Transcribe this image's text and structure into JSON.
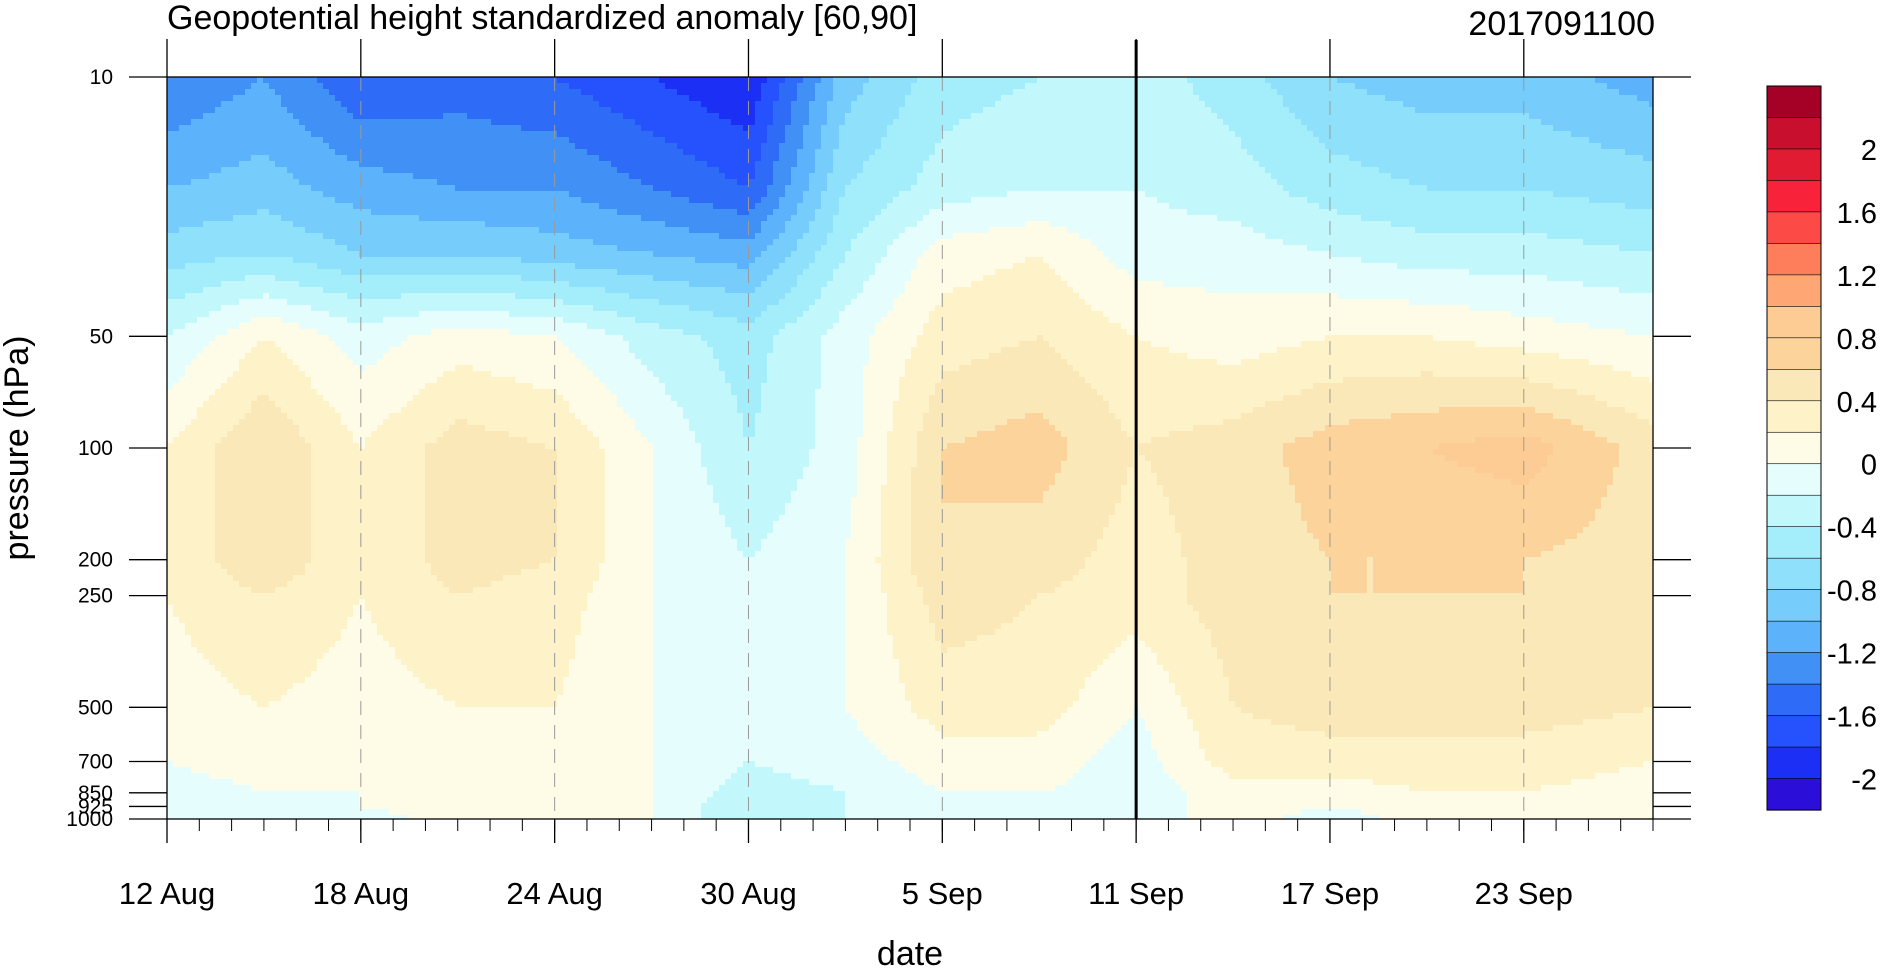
{
  "chart_data": {
    "type": "heatmap",
    "title": "Geopotential height standardized anomaly [60,90]",
    "date_stamp": "2017091100",
    "xlabel": "date",
    "ylabel": "pressure (hPa)",
    "y_scale": "log",
    "y_inverted": true,
    "xlim": [
      "2017-08-12",
      "2017-09-27"
    ],
    "ylim": [
      1000,
      10
    ],
    "x_ticks": [
      {
        "date": "2017-08-12",
        "label": "12 Aug"
      },
      {
        "date": "2017-08-18",
        "label": "18 Aug"
      },
      {
        "date": "2017-08-24",
        "label": "24 Aug"
      },
      {
        "date": "2017-08-30",
        "label": "30 Aug"
      },
      {
        "date": "2017-09-05",
        "label": "5 Sep"
      },
      {
        "date": "2017-09-11",
        "label": "11 Sep"
      },
      {
        "date": "2017-09-17",
        "label": "17 Sep"
      },
      {
        "date": "2017-09-23",
        "label": "23 Sep"
      }
    ],
    "y_ticks": [
      10,
      50,
      100,
      200,
      250,
      500,
      700,
      850,
      925,
      1000
    ],
    "current_date_line": "2017-09-11",
    "grid": "dashed vertical lines at x ticks",
    "x": [
      "2017-08-12",
      "2017-08-15",
      "2017-08-18",
      "2017-08-21",
      "2017-08-24",
      "2017-08-27",
      "2017-08-30",
      "2017-09-02",
      "2017-09-05",
      "2017-09-08",
      "2017-09-11",
      "2017-09-14",
      "2017-09-17",
      "2017-09-20",
      "2017-09-23",
      "2017-09-27"
    ],
    "y": [
      10,
      20,
      30,
      50,
      100,
      200,
      250,
      500,
      700,
      850,
      925,
      1000
    ],
    "z": [
      [
        -1.4,
        -1.2,
        -1.6,
        -1.5,
        -1.6,
        -1.8,
        -2.0,
        -0.9,
        -0.5,
        -0.4,
        -0.3,
        -0.5,
        -0.8,
        -0.9,
        -0.9,
        -1.1
      ],
      [
        -1.0,
        -0.9,
        -1.1,
        -1.2,
        -1.2,
        -1.4,
        -1.6,
        -0.6,
        -0.3,
        -0.2,
        -0.2,
        -0.3,
        -0.5,
        -0.6,
        -0.6,
        -0.7
      ],
      [
        -0.7,
        -0.6,
        -0.8,
        -0.8,
        -0.9,
        -1.0,
        -1.1,
        -0.4,
        0.1,
        0.2,
        -0.1,
        -0.1,
        -0.2,
        -0.3,
        -0.3,
        -0.4
      ],
      [
        -0.2,
        0.2,
        -0.1,
        0.1,
        0.0,
        -0.3,
        -0.5,
        -0.1,
        0.3,
        0.4,
        0.2,
        0.1,
        0.2,
        0.2,
        0.1,
        0.0
      ],
      [
        0.2,
        0.6,
        0.2,
        0.5,
        0.4,
        0.0,
        -0.4,
        -0.1,
        0.6,
        0.7,
        0.4,
        0.5,
        0.7,
        0.8,
        0.9,
        0.5
      ],
      [
        0.2,
        0.6,
        0.2,
        0.5,
        0.4,
        0.0,
        -0.2,
        0.0,
        0.6,
        0.5,
        0.3,
        0.5,
        0.6,
        0.6,
        0.6,
        0.5
      ],
      [
        0.2,
        0.4,
        0.2,
        0.4,
        0.3,
        0.0,
        -0.1,
        0.0,
        0.5,
        0.4,
        0.3,
        0.5,
        0.6,
        0.6,
        0.6,
        0.5
      ],
      [
        0.1,
        0.2,
        0.1,
        0.2,
        0.2,
        0.0,
        -0.1,
        0.0,
        0.3,
        0.3,
        0.0,
        0.4,
        0.5,
        0.5,
        0.5,
        0.4
      ],
      [
        0.0,
        0.1,
        0.0,
        0.1,
        0.1,
        0.0,
        -0.2,
        -0.1,
        0.1,
        0.1,
        -0.1,
        0.3,
        0.3,
        0.3,
        0.3,
        0.2
      ],
      [
        -0.1,
        0.0,
        0.0,
        0.1,
        0.0,
        0.0,
        -0.3,
        -0.2,
        0.0,
        0.0,
        -0.1,
        0.1,
        0.1,
        0.2,
        0.2,
        0.1
      ],
      [
        -0.2,
        -0.1,
        0.0,
        0.1,
        0.0,
        0.0,
        -0.4,
        -0.2,
        0.0,
        -0.1,
        -0.1,
        0.1,
        0.0,
        0.1,
        0.1,
        0.1
      ],
      [
        -0.2,
        -0.1,
        -0.1,
        0.1,
        0.0,
        0.0,
        -0.4,
        -0.2,
        0.0,
        -0.1,
        -0.1,
        0.1,
        -0.1,
        0.1,
        0.1,
        0.1
      ]
    ],
    "colorbar": {
      "labels": [
        "2",
        "1.6",
        "1.2",
        "0.8",
        "0.4",
        "0",
        "-0.4",
        "-0.8",
        "-1.2",
        "-1.6",
        "-2"
      ],
      "bins": [
        {
          "lo": 2.2,
          "hi": 2.4,
          "color": "#a50026"
        },
        {
          "lo": 2.0,
          "hi": 2.2,
          "color": "#c8102e"
        },
        {
          "lo": 1.8,
          "hi": 2.0,
          "color": "#e11b31"
        },
        {
          "lo": 1.6,
          "hi": 1.8,
          "color": "#f8233a"
        },
        {
          "lo": 1.4,
          "hi": 1.6,
          "color": "#fc4a46"
        },
        {
          "lo": 1.2,
          "hi": 1.4,
          "color": "#fe7e5c"
        },
        {
          "lo": 1.0,
          "hi": 1.2,
          "color": "#fea774"
        },
        {
          "lo": 0.8,
          "hi": 1.0,
          "color": "#fdcc94"
        },
        {
          "lo": 0.6,
          "hi": 0.8,
          "color": "#fdd39c"
        },
        {
          "lo": 0.4,
          "hi": 0.6,
          "color": "#fbe8b8"
        },
        {
          "lo": 0.2,
          "hi": 0.4,
          "color": "#fdf2c8"
        },
        {
          "lo": 0.0,
          "hi": 0.2,
          "color": "#fefce6"
        },
        {
          "lo": -0.2,
          "hi": 0.0,
          "color": "#e6fdfd"
        },
        {
          "lo": -0.4,
          "hi": -0.2,
          "color": "#c2f8fb"
        },
        {
          "lo": -0.6,
          "hi": -0.4,
          "color": "#a4edfb"
        },
        {
          "lo": -0.8,
          "hi": -0.6,
          "color": "#8fe1fb"
        },
        {
          "lo": -1.0,
          "hi": -0.8,
          "color": "#76cdfc"
        },
        {
          "lo": -1.2,
          "hi": -1.0,
          "color": "#5db3fb"
        },
        {
          "lo": -1.4,
          "hi": -1.2,
          "color": "#4190f6"
        },
        {
          "lo": -1.6,
          "hi": -1.4,
          "color": "#2e6cf7"
        },
        {
          "lo": -1.8,
          "hi": -1.6,
          "color": "#2552fc"
        },
        {
          "lo": -2.0,
          "hi": -1.8,
          "color": "#1c2ff4"
        },
        {
          "lo": -2.2,
          "hi": -2.0,
          "color": "#2b0fd8"
        }
      ]
    }
  }
}
